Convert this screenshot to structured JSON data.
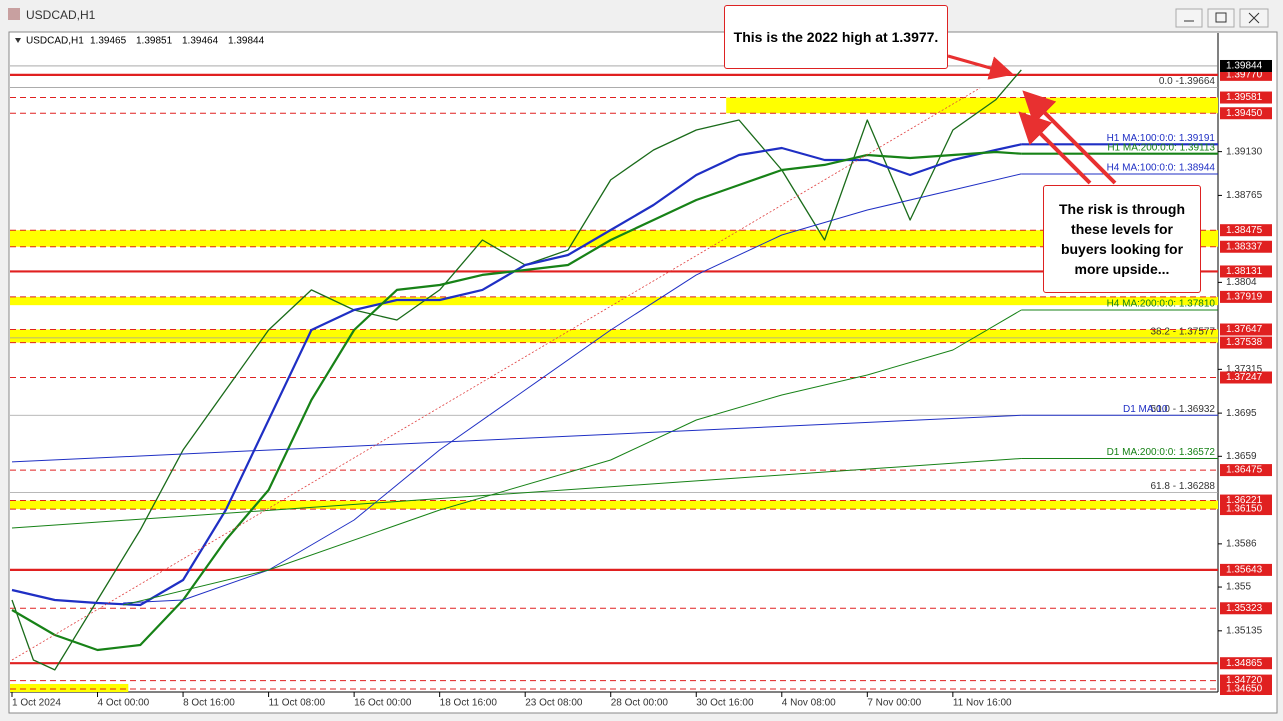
{
  "chart_data": {
    "type": "line",
    "title": "USDCAD,H1",
    "ohlc": [
      1.39465,
      1.39851,
      1.39464,
      1.39844
    ],
    "current_price": 1.39844,
    "xlim": [
      0,
      14.1
    ],
    "xticks": [
      {
        "value": 0,
        "label": "1 Oct 2024"
      },
      {
        "value": 1,
        "label": "4 Oct 00:00"
      },
      {
        "value": 2,
        "label": "8 Oct 16:00"
      },
      {
        "value": 3,
        "label": "11 Oct 08:00"
      },
      {
        "value": 4,
        "label": "16 Oct 00:00"
      },
      {
        "value": 5,
        "label": "18 Oct 16:00"
      },
      {
        "value": 6,
        "label": "23 Oct 08:00"
      },
      {
        "value": 7,
        "label": "28 Oct 00:00"
      },
      {
        "value": 8,
        "label": "30 Oct 16:00"
      },
      {
        "value": 9,
        "label": "4 Nov 08:00"
      },
      {
        "value": 10,
        "label": "7 Nov 00:00"
      },
      {
        "value": 11,
        "label": "11 Nov 16:00"
      }
    ],
    "ylim": [
      1.34625,
      1.40119
    ],
    "yticks": [
      {
        "value": 1.3913,
        "label": "1.39130"
      },
      1.38765,
      1.3804,
      1.37315,
      1.3695,
      1.3659,
      1.3586,
      1.355,
      1.35135
    ],
    "series": [
      {
        "color": "#1a6b1a",
        "width": 1.3,
        "x": [
          0,
          0.25,
          0.5,
          1,
          1.5,
          2,
          2.5,
          3,
          3.5,
          4,
          4.5,
          5,
          5.5,
          6,
          6.5,
          7,
          7.5,
          8,
          8.5,
          9,
          9.5,
          10,
          10.5,
          11,
          11.5,
          11.8
        ],
        "values": [
          1.35392,
          1.34892,
          1.34809,
          1.35392,
          1.35976,
          1.36643,
          1.37143,
          1.37643,
          1.37977,
          1.3781,
          1.37726,
          1.37977,
          1.38393,
          1.38185,
          1.3831,
          1.38894,
          1.39144,
          1.3931,
          1.39394,
          1.38977,
          1.38393,
          1.39394,
          1.3856,
          1.3931,
          1.39561,
          1.39811
        ]
      },
      {
        "color": "#1f2fc4",
        "width": 2.2,
        "label": "H1 MA:100:0:0: 1.39191",
        "x": [
          0,
          0.5,
          1,
          1.5,
          2,
          2.5,
          3,
          3.5,
          4,
          4.5,
          5,
          5.5,
          6,
          6.5,
          7,
          7.5,
          8,
          8.5,
          9,
          9.5,
          10,
          10.5,
          11,
          11.5,
          11.8
        ],
        "values": [
          1.35475,
          1.35392,
          1.35367,
          1.3535,
          1.35559,
          1.36142,
          1.36893,
          1.37643,
          1.3781,
          1.37893,
          1.37893,
          1.37977,
          1.38185,
          1.38268,
          1.38477,
          1.38685,
          1.38935,
          1.39102,
          1.3916,
          1.3906,
          1.3906,
          1.38935,
          1.3906,
          1.39144,
          1.39191
        ]
      },
      {
        "color": "#178217",
        "width": 2.2,
        "label": "H1 MA:200:0:0: 1.39113",
        "x": [
          0,
          0.5,
          1,
          1.5,
          2,
          2.5,
          3,
          3.5,
          4,
          4.5,
          5,
          5.5,
          6,
          6.5,
          7,
          7.5,
          8,
          8.5,
          9,
          9.5,
          10,
          10.5,
          11,
          11.5,
          11.8
        ],
        "values": [
          1.35309,
          1.351,
          1.34975,
          1.35017,
          1.35392,
          1.35892,
          1.36309,
          1.37059,
          1.37643,
          1.37977,
          1.38018,
          1.38102,
          1.38143,
          1.38185,
          1.38393,
          1.3856,
          1.38727,
          1.38852,
          1.38977,
          1.39019,
          1.39102,
          1.39077,
          1.39102,
          1.39127,
          1.39113
        ]
      },
      {
        "color": "#1f2fc4",
        "width": 1,
        "label": "H4 MA:100:0:0: 1.38944",
        "x": [
          1.3,
          2,
          3,
          4,
          5,
          6,
          7,
          8,
          9,
          10,
          11,
          11.8
        ],
        "values": [
          1.35367,
          1.35392,
          1.35642,
          1.36059,
          1.36643,
          1.37143,
          1.37643,
          1.38102,
          1.38435,
          1.38643,
          1.3881,
          1.38944
        ]
      },
      {
        "color": "#178217",
        "width": 1,
        "label": "H4 MA:200:0:0: 1.37810",
        "x": [
          1.3,
          3,
          5,
          7,
          8,
          9,
          10,
          11,
          11.8
        ],
        "values": [
          1.3535,
          1.35642,
          1.36142,
          1.36559,
          1.36893,
          1.37101,
          1.37268,
          1.37476,
          1.3781
        ]
      },
      {
        "color": "#1f2fc4",
        "width": 1,
        "label": "D1 MA:10",
        "x": [
          0,
          11.8
        ],
        "values": [
          1.36543,
          1.36932
        ]
      },
      {
        "color": "#178217",
        "width": 1,
        "label": "D1 MA:200:0:0: 1.36572",
        "x": [
          0,
          11.8
        ],
        "values": [
          1.35992,
          1.36572
        ]
      }
    ],
    "zones": [
      {
        "top": 1.39581,
        "bottom": 1.3945,
        "from": 8.35
      },
      {
        "top": 1.38475,
        "bottom": 1.38337
      },
      {
        "top": 1.37919,
        "bottom": 1.3785
      },
      {
        "top": 1.37647,
        "bottom": 1.37538
      },
      {
        "top": 1.36221,
        "bottom": 1.3615
      },
      {
        "top": 1.34692,
        "bottom": 1.34625,
        "to": 1.36
      }
    ],
    "levels": [
      {
        "value": 1.3977,
        "label": "1.39770",
        "style": "solid"
      },
      {
        "value": 1.39581,
        "style": "dashed"
      },
      {
        "value": 1.3945,
        "label": "1.39450",
        "style": "dashed"
      },
      {
        "value": 1.38475,
        "style": "dashed"
      },
      {
        "value": 1.38337,
        "style": "dashed"
      },
      {
        "value": 1.38131,
        "style": "solid"
      },
      {
        "value": 1.37919,
        "style": "dashed"
      },
      {
        "value": 1.37647,
        "style": "dashed"
      },
      {
        "value": 1.37538,
        "style": "dashed"
      },
      {
        "value": 1.37247,
        "style": "dashed"
      },
      {
        "value": 1.36475,
        "style": "dashed"
      },
      {
        "value": 1.36221,
        "style": "dashed"
      },
      {
        "value": 1.3615,
        "label": "1.36150",
        "style": "dashed"
      },
      {
        "value": 1.35643,
        "style": "solid"
      },
      {
        "value": 1.35323,
        "style": "dashed"
      },
      {
        "value": 1.34865,
        "style": "solid"
      },
      {
        "value": 1.3472,
        "label": "1.34720",
        "style": "dashed"
      },
      {
        "value": 1.3465,
        "label": "1.34650",
        "style": "dashed"
      }
    ],
    "fibs": [
      {
        "value": 1.39664,
        "label": "0.0 -1.39664"
      },
      {
        "value": 1.37577,
        "label": "38.2 - 1.37577"
      },
      {
        "value": 1.36932,
        "label": "50.0 - 1.36932"
      },
      {
        "value": 1.36288,
        "label": "61.8 - 1.36288"
      }
    ],
    "annotations": [
      "This is the 2022 high at 1.3977.",
      "The risk is through these levels for buyers looking for more upside..."
    ]
  }
}
